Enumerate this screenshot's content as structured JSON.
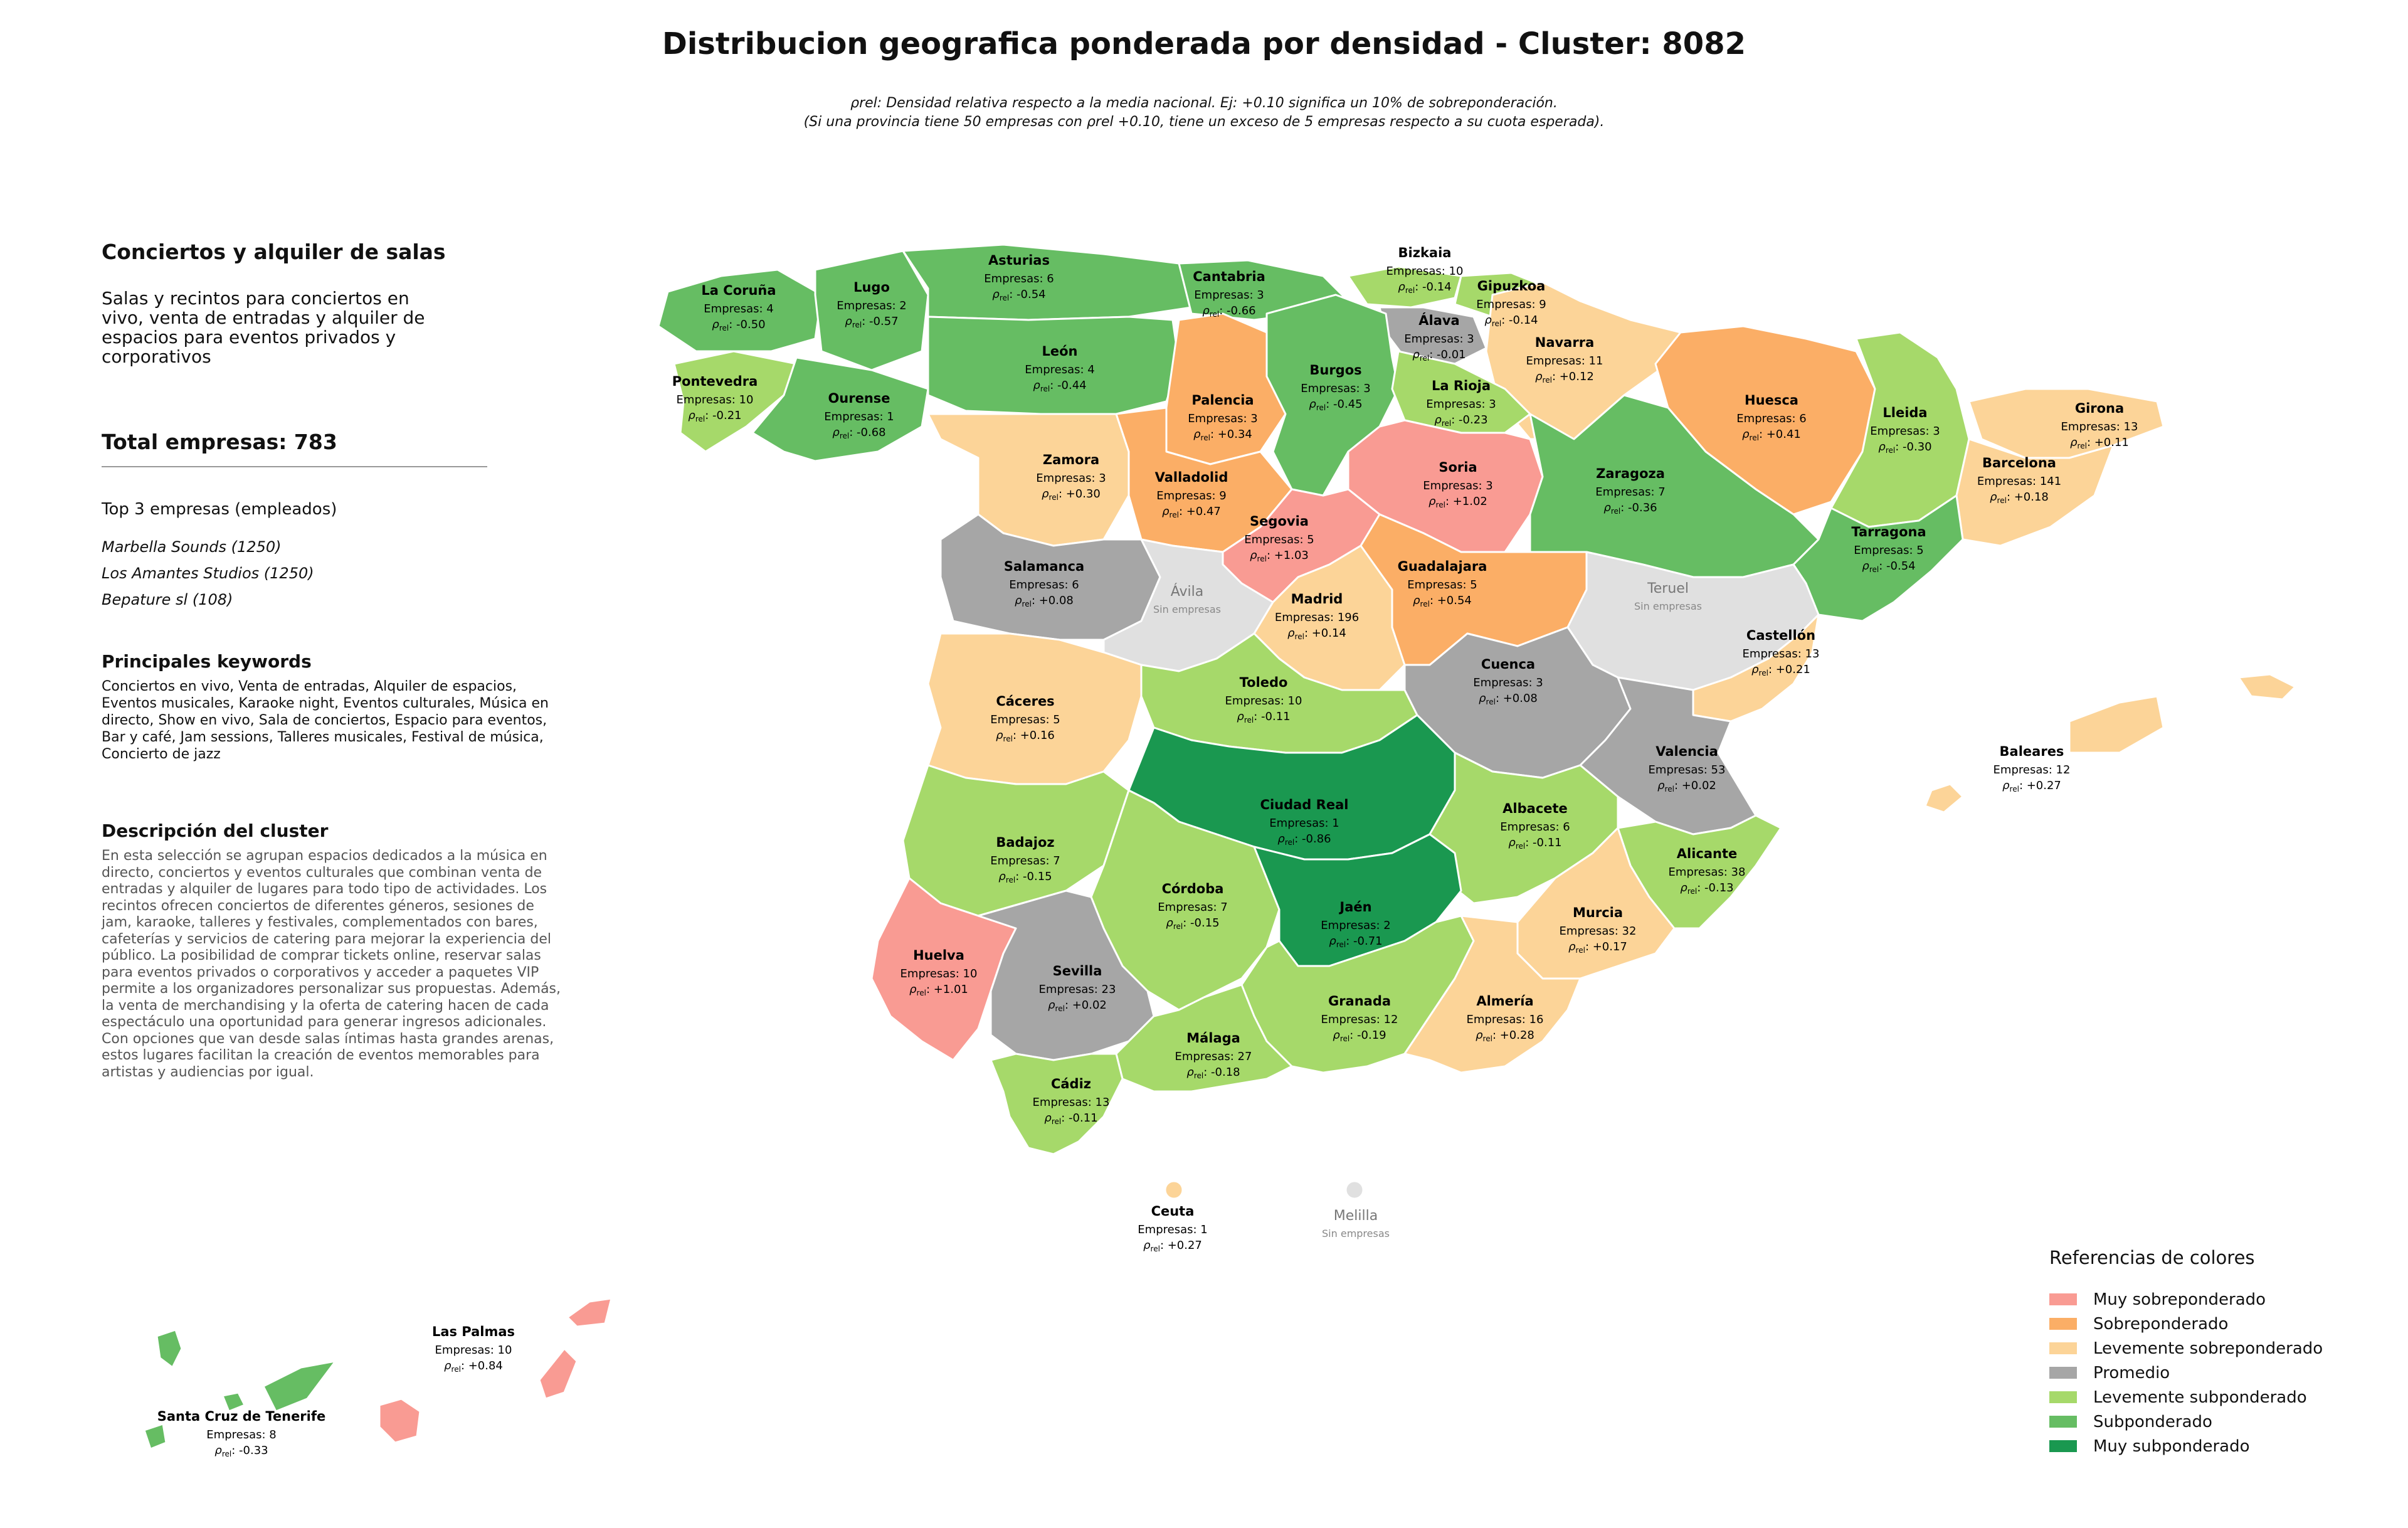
{
  "title": "Distribucion geografica ponderada por densidad - Cluster: 8082",
  "subtitle": {
    "line1": "ρrel: Densidad relativa respecto a la media nacional. Ej: +0.10 significa un 10% de sobreponderación.",
    "line2": "(Si una provincia tiene 50 empresas con ρrel +0.10, tiene un exceso de 5 empresas respecto a su cuota esperada)."
  },
  "sidebar": {
    "cluster_title": "Conciertos y alquiler de salas",
    "cluster_desc": "Salas y recintos para conciertos en vivo, venta de entradas y alquiler de espacios para eventos privados y corporativos",
    "total": "Total empresas: 783",
    "top_heading": "Top 3 empresas (empleados)",
    "top_companies": [
      "Marbella Sounds (1250)",
      "Los Amantes Studios (1250)",
      "Bepature sl (108)"
    ],
    "keywords_heading": "Principales keywords",
    "keywords": "Conciertos en vivo, Venta de entradas, Alquiler de espacios, Eventos musicales, Karaoke night, Eventos culturales, Música en directo, Show en vivo, Sala de conciertos, Espacio para eventos, Bar y café, Jam sessions, Talleres musicales, Festival de música, Concierto de jazz",
    "description_heading": "Descripción del cluster",
    "description": "En esta selección se agrupan espacios dedicados a la música en directo, conciertos y eventos culturales que combinan venta de entradas y alquiler de lugares para todo tipo de actividades. Los recintos ofrecen conciertos de diferentes géneros, sesiones de jam, karaoke, talleres y festivales, complementados con bares, cafeterías y servicios de catering para mejorar la experiencia del público. La posibilidad de comprar tickets online, reservar salas para eventos privados o corporativos y acceder a paquetes VIP permite a los organizadores personalizar sus propuestas. Además, la venta de merchandising y la oferta de catering hacen de cada espectáculo una oportunidad para generar ingresos adicionales. Con opciones que van desde salas íntimas hasta grandes arenas, estos lugares facilitan la creación de eventos memorables para artistas y audiencias por igual."
  },
  "colors": {
    "muy_sobre": "#f99b93",
    "sobre": "#fbae66",
    "lev_sobre": "#fcd498",
    "promedio": "#a6a6a6",
    "lev_sub": "#a6d96a",
    "sub": "#66bd63",
    "muy_sub": "#1a9850",
    "sin": "#e0e0e0"
  },
  "legend": {
    "title": "Referencias de colores",
    "items": [
      {
        "label": "Muy sobreponderado",
        "cat": "muy_sobre"
      },
      {
        "label": "Sobreponderado",
        "cat": "sobre"
      },
      {
        "label": "Levemente sobreponderado",
        "cat": "lev_sobre"
      },
      {
        "label": "Promedio",
        "cat": "promedio"
      },
      {
        "label": "Levemente subponderado",
        "cat": "lev_sub"
      },
      {
        "label": "Subponderado",
        "cat": "sub"
      },
      {
        "label": "Muy subponderado",
        "cat": "muy_sub"
      }
    ]
  },
  "provinces": [
    {
      "name": "La Coruña",
      "empresas": 4,
      "rho": "-0.50",
      "cat": "sub"
    },
    {
      "name": "Lugo",
      "empresas": 2,
      "rho": "-0.57",
      "cat": "sub"
    },
    {
      "name": "Asturias",
      "empresas": 6,
      "rho": "-0.54",
      "cat": "sub"
    },
    {
      "name": "Cantabria",
      "empresas": 3,
      "rho": "-0.66",
      "cat": "sub"
    },
    {
      "name": "Bizkaia",
      "empresas": 10,
      "rho": "-0.14",
      "cat": "lev_sub"
    },
    {
      "name": "Gipuzkoa",
      "empresas": 9,
      "rho": "-0.14",
      "cat": "lev_sub"
    },
    {
      "name": "Álava",
      "empresas": 3,
      "rho": "-0.01",
      "cat": "promedio"
    },
    {
      "name": "Navarra",
      "empresas": 11,
      "rho": "+0.12",
      "cat": "lev_sobre"
    },
    {
      "name": "Pontevedra",
      "empresas": 10,
      "rho": "-0.21",
      "cat": "lev_sub"
    },
    {
      "name": "Ourense",
      "empresas": 1,
      "rho": "-0.68",
      "cat": "sub"
    },
    {
      "name": "León",
      "empresas": 4,
      "rho": "-0.44",
      "cat": "sub"
    },
    {
      "name": "Palencia",
      "empresas": 3,
      "rho": "+0.34",
      "cat": "sobre"
    },
    {
      "name": "Burgos",
      "empresas": 3,
      "rho": "-0.45",
      "cat": "sub"
    },
    {
      "name": "La Rioja",
      "empresas": 3,
      "rho": "-0.23",
      "cat": "lev_sub"
    },
    {
      "name": "Huesca",
      "empresas": 6,
      "rho": "+0.41",
      "cat": "sobre"
    },
    {
      "name": "Lleida",
      "empresas": 3,
      "rho": "-0.30",
      "cat": "lev_sub"
    },
    {
      "name": "Girona",
      "empresas": 13,
      "rho": "+0.11",
      "cat": "lev_sobre"
    },
    {
      "name": "Barcelona",
      "empresas": 141,
      "rho": "+0.18",
      "cat": "lev_sobre"
    },
    {
      "name": "Zamora",
      "empresas": 3,
      "rho": "+0.30",
      "cat": "lev_sobre"
    },
    {
      "name": "Valladolid",
      "empresas": 9,
      "rho": "+0.47",
      "cat": "sobre"
    },
    {
      "name": "Soria",
      "empresas": 3,
      "rho": "+1.02",
      "cat": "muy_sobre"
    },
    {
      "name": "Zaragoza",
      "empresas": 7,
      "rho": "-0.36",
      "cat": "sub"
    },
    {
      "name": "Tarragona",
      "empresas": 5,
      "rho": "-0.54",
      "cat": "sub"
    },
    {
      "name": "Segovia",
      "empresas": 5,
      "rho": "+1.03",
      "cat": "muy_sobre"
    },
    {
      "name": "Salamanca",
      "empresas": 6,
      "rho": "+0.08",
      "cat": "promedio"
    },
    {
      "name": "Ávila",
      "empresas": null,
      "rho": null,
      "cat": "sin"
    },
    {
      "name": "Madrid",
      "empresas": 196,
      "rho": "+0.14",
      "cat": "lev_sobre"
    },
    {
      "name": "Guadalajara",
      "empresas": 5,
      "rho": "+0.54",
      "cat": "sobre"
    },
    {
      "name": "Teruel",
      "empresas": null,
      "rho": null,
      "cat": "sin"
    },
    {
      "name": "Castellón",
      "empresas": 13,
      "rho": "+0.21",
      "cat": "lev_sobre"
    },
    {
      "name": "Cáceres",
      "empresas": 5,
      "rho": "+0.16",
      "cat": "lev_sobre"
    },
    {
      "name": "Toledo",
      "empresas": 10,
      "rho": "-0.11",
      "cat": "lev_sub"
    },
    {
      "name": "Cuenca",
      "empresas": 3,
      "rho": "+0.08",
      "cat": "promedio"
    },
    {
      "name": "Valencia",
      "empresas": 53,
      "rho": "+0.02",
      "cat": "promedio"
    },
    {
      "name": "Baleares",
      "empresas": 12,
      "rho": "+0.27",
      "cat": "lev_sobre"
    },
    {
      "name": "Badajoz",
      "empresas": 7,
      "rho": "-0.15",
      "cat": "lev_sub"
    },
    {
      "name": "Ciudad Real",
      "empresas": 1,
      "rho": "-0.86",
      "cat": "muy_sub"
    },
    {
      "name": "Albacete",
      "empresas": 6,
      "rho": "-0.11",
      "cat": "lev_sub"
    },
    {
      "name": "Alicante",
      "empresas": 38,
      "rho": "-0.13",
      "cat": "lev_sub"
    },
    {
      "name": "Córdoba",
      "empresas": 7,
      "rho": "-0.15",
      "cat": "lev_sub"
    },
    {
      "name": "Jaén",
      "empresas": 2,
      "rho": "-0.71",
      "cat": "muy_sub"
    },
    {
      "name": "Murcia",
      "empresas": 32,
      "rho": "+0.17",
      "cat": "lev_sobre"
    },
    {
      "name": "Huelva",
      "empresas": 10,
      "rho": "+1.01",
      "cat": "muy_sobre"
    },
    {
      "name": "Sevilla",
      "empresas": 23,
      "rho": "+0.02",
      "cat": "promedio"
    },
    {
      "name": "Granada",
      "empresas": 12,
      "rho": "-0.19",
      "cat": "lev_sub"
    },
    {
      "name": "Almería",
      "empresas": 16,
      "rho": "+0.28",
      "cat": "lev_sobre"
    },
    {
      "name": "Málaga",
      "empresas": 27,
      "rho": "-0.18",
      "cat": "lev_sub"
    },
    {
      "name": "Cádiz",
      "empresas": 13,
      "rho": "-0.11",
      "cat": "lev_sub"
    },
    {
      "name": "Ceuta",
      "empresas": 1,
      "rho": "+0.27",
      "cat": "lev_sobre"
    },
    {
      "name": "Melilla",
      "empresas": null,
      "rho": null,
      "cat": "sin"
    },
    {
      "name": "Las Palmas",
      "empresas": 10,
      "rho": "+0.84",
      "cat": "muy_sobre"
    },
    {
      "name": "Santa Cruz de Tenerife",
      "empresas": 8,
      "rho": "-0.33",
      "cat": "sub"
    }
  ],
  "labels": {
    "empresas_prefix": "Empresas: ",
    "rho_symbol": "ρ",
    "rho_sub": "rel",
    "sin_empresas": "Sin empresas"
  }
}
